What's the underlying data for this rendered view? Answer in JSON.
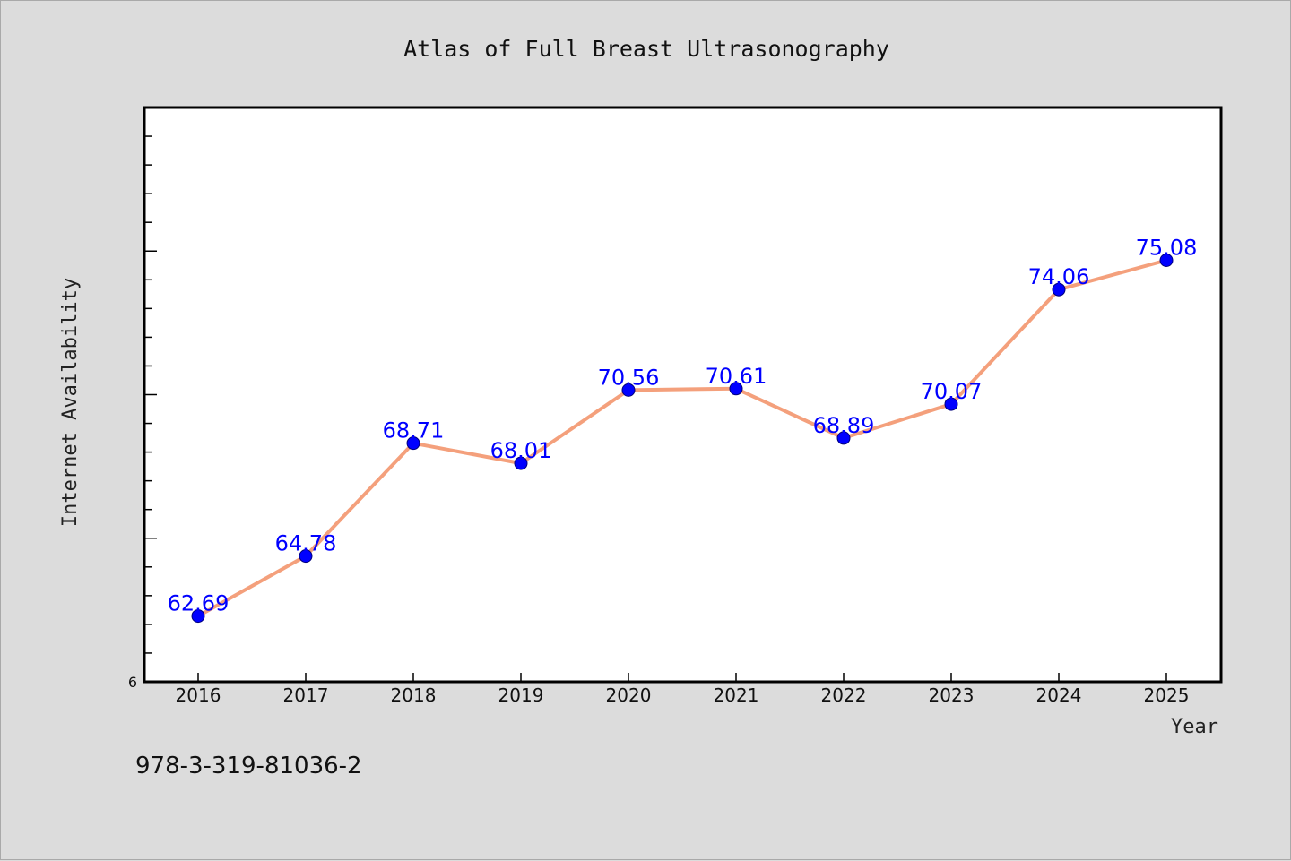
{
  "chart_data": {
    "type": "line",
    "title": "Atlas of Full Breast Ultrasonography",
    "xlabel": "Year",
    "ylabel": "Internet Availability",
    "categories": [
      "2016",
      "2017",
      "2018",
      "2019",
      "2020",
      "2021",
      "2022",
      "2023",
      "2024",
      "2025"
    ],
    "series": [
      {
        "values": [
          62.69,
          64.78,
          68.71,
          68.01,
          70.56,
          70.61,
          68.89,
          70.07,
          74.06,
          75.08
        ],
        "data_labels": [
          "62.69",
          "64.78",
          "68.71",
          "68.01",
          "70.56",
          "70.61",
          "68.89",
          "70.07",
          "74.06",
          "75.08"
        ]
      }
    ],
    "ylim": [
      60.4,
      80.4
    ],
    "y_min_tick_label": "6",
    "grid": false,
    "legend": "none",
    "line_color": "#f4a07c",
    "marker_color": "#0000ff",
    "label_color": "#0000ff",
    "plot_background": "#ffffff",
    "page_background": "#dcdcdc"
  },
  "footer": {
    "isbn": "978-3-319-81036-2"
  }
}
